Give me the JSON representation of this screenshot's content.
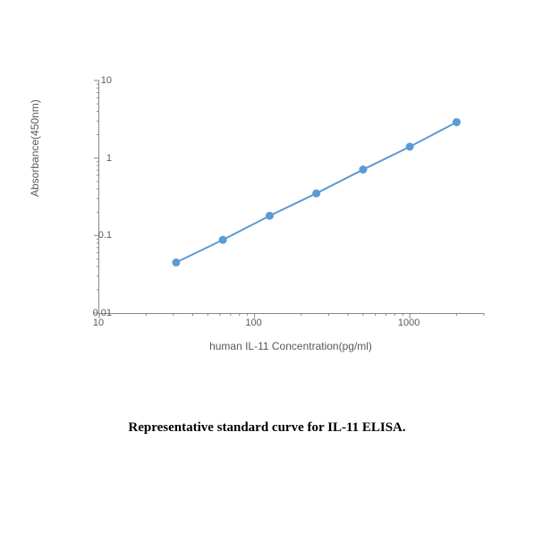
{
  "caption": "Representative standard curve for IL-11 ELISA.",
  "chart": {
    "type": "line",
    "xlabel": "human IL-11  Concentration(pg/ml)",
    "ylabel": "Absorbance(450nm)",
    "xscale": "log",
    "yscale": "log",
    "xlim": [
      10,
      3000
    ],
    "ylim": [
      0.01,
      10
    ],
    "x_ticks": [
      10,
      100,
      1000
    ],
    "x_tick_labels": [
      "10",
      "100",
      "1000"
    ],
    "y_ticks": [
      0.01,
      0.1,
      1,
      10
    ],
    "y_tick_labels": [
      "0.01",
      "0.1",
      "1",
      "10"
    ],
    "x_minor_ticks": [
      20,
      30,
      40,
      50,
      60,
      70,
      80,
      90,
      200,
      300,
      400,
      500,
      600,
      700,
      800,
      900,
      2000,
      3000
    ],
    "y_minor_ticks": [
      0.02,
      0.03,
      0.04,
      0.05,
      0.06,
      0.07,
      0.08,
      0.09,
      0.2,
      0.3,
      0.4,
      0.5,
      0.6,
      0.7,
      0.8,
      0.9,
      2,
      3,
      4,
      5,
      6,
      7,
      8,
      9
    ],
    "series": {
      "x": [
        31.25,
        62.5,
        125,
        250,
        500,
        1000,
        2000
      ],
      "y": [
        0.045,
        0.088,
        0.18,
        0.35,
        0.71,
        1.4,
        2.9
      ]
    },
    "line_color": "#5b9bd5",
    "marker_color": "#5b9bd5",
    "marker_radius": 4.5,
    "line_width": 2,
    "tick_color": "#888888",
    "tick_length_major": 6,
    "tick_length_minor": 3,
    "background_color": "#ffffff",
    "label_fontsize": 12,
    "tick_fontsize": 11,
    "caption_fontsize": 15
  }
}
